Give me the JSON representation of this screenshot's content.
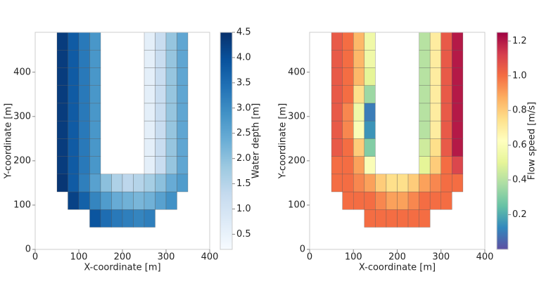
{
  "chart_data": [
    {
      "type": "heatmap",
      "x_label": "X-coordinate [m]",
      "y_label": "Y-coordinate [m]",
      "colorbar_label": "Water depth [m]",
      "xbins": [
        50,
        75,
        100,
        125,
        150,
        175,
        200,
        225,
        250,
        275,
        300,
        325,
        350
      ],
      "ybins": [
        50,
        90,
        130,
        170,
        210,
        250,
        290,
        330,
        370,
        410,
        450,
        490
      ],
      "values": [
        [
          null,
          null,
          null,
          3.9,
          3.5,
          3.3,
          3.2,
          3.1,
          3.2,
          null,
          null,
          null
        ],
        [
          null,
          4.2,
          3.7,
          3.1,
          2.7,
          2.4,
          2.3,
          2.2,
          2.3,
          2.6,
          2.9,
          null
        ],
        [
          4.4,
          3.8,
          3.2,
          2.6,
          2.0,
          1.6,
          1.4,
          1.5,
          1.7,
          2.0,
          2.4,
          2.7
        ],
        [
          4.3,
          3.8,
          3.3,
          2.8,
          null,
          null,
          null,
          null,
          0.6,
          1.2,
          1.9,
          2.5
        ],
        [
          4.3,
          3.8,
          3.3,
          2.8,
          null,
          null,
          null,
          null,
          0.6,
          1.2,
          1.9,
          2.5
        ],
        [
          4.3,
          3.8,
          3.3,
          2.8,
          null,
          null,
          null,
          null,
          0.6,
          1.2,
          1.9,
          2.5
        ],
        [
          4.3,
          3.8,
          3.3,
          2.8,
          null,
          null,
          null,
          null,
          0.6,
          1.2,
          1.9,
          2.5
        ],
        [
          4.3,
          3.8,
          3.3,
          2.8,
          null,
          null,
          null,
          null,
          0.6,
          1.2,
          1.9,
          2.5
        ],
        [
          4.3,
          3.8,
          3.3,
          2.8,
          null,
          null,
          null,
          null,
          0.6,
          1.2,
          1.9,
          2.5
        ],
        [
          4.3,
          3.8,
          3.3,
          2.8,
          null,
          null,
          null,
          null,
          0.6,
          1.2,
          1.9,
          2.5
        ],
        [
          4.3,
          3.8,
          3.3,
          2.8,
          null,
          null,
          null,
          null,
          0.6,
          1.2,
          1.9,
          2.5
        ]
      ],
      "xlim": [
        0,
        400
      ],
      "ylim": [
        0,
        490
      ],
      "xticks": [
        0,
        100,
        200,
        300,
        400
      ],
      "yticks": [
        0,
        100,
        200,
        300,
        400
      ],
      "clim": [
        0.2,
        4.5
      ],
      "cticks": [
        0.5,
        {
          "value": 1,
          "label": "1.0"
        },
        1.5,
        {
          "value": 2,
          "label": "2.0"
        },
        2.5,
        {
          "value": 3,
          "label": "3.0"
        },
        3.5,
        {
          "value": 4,
          "label": "4.0"
        },
        4.5
      ],
      "colorscale": [
        "#f7fbff",
        "#deebf7",
        "#c6dbef",
        "#9ecae1",
        "#6baed6",
        "#4292c6",
        "#2171b5",
        "#08519c",
        "#08306b"
      ]
    },
    {
      "type": "heatmap",
      "x_label": "X-coordinate [m]",
      "y_label": "Y-coordinate [m]",
      "colorbar_label": "Flow speed [m/s]",
      "xbins": [
        50,
        75,
        100,
        125,
        150,
        175,
        200,
        225,
        250,
        275,
        300,
        325,
        350
      ],
      "ybins": [
        50,
        90,
        130,
        170,
        210,
        250,
        290,
        330,
        370,
        410,
        450,
        490
      ],
      "values": [
        [
          null,
          null,
          null,
          1.0,
          1.0,
          1.0,
          1.0,
          1.0,
          1.0,
          null,
          null,
          null
        ],
        [
          null,
          1.0,
          1.0,
          1.0,
          0.95,
          0.9,
          0.9,
          0.95,
          1.0,
          1.0,
          1.0,
          null
        ],
        [
          1.0,
          1.0,
          0.95,
          0.9,
          0.8,
          0.75,
          0.75,
          0.8,
          0.9,
          0.95,
          1.0,
          1.0
        ],
        [
          1.0,
          1.0,
          0.9,
          0.6,
          null,
          null,
          null,
          null,
          0.5,
          0.8,
          1.0,
          1.1
        ],
        [
          1.05,
          1.0,
          0.8,
          0.3,
          null,
          null,
          null,
          null,
          0.45,
          0.75,
          1.05,
          1.2
        ],
        [
          1.05,
          0.95,
          0.6,
          0.15,
          null,
          null,
          null,
          null,
          0.4,
          0.7,
          1.05,
          1.2
        ],
        [
          1.05,
          0.95,
          0.55,
          0.1,
          null,
          null,
          null,
          null,
          0.4,
          0.7,
          1.05,
          1.2
        ],
        [
          1.05,
          1.0,
          0.75,
          0.35,
          null,
          null,
          null,
          null,
          0.4,
          0.7,
          1.05,
          1.2
        ],
        [
          1.05,
          1.0,
          0.85,
          0.5,
          null,
          null,
          null,
          null,
          0.4,
          0.7,
          1.05,
          1.2
        ],
        [
          1.05,
          1.0,
          0.85,
          0.55,
          null,
          null,
          null,
          null,
          0.4,
          0.7,
          1.05,
          1.2
        ],
        [
          1.05,
          1.0,
          0.85,
          0.55,
          null,
          null,
          null,
          null,
          0.4,
          0.7,
          1.05,
          1.2
        ]
      ],
      "xlim": [
        0,
        400
      ],
      "ylim": [
        0,
        490
      ],
      "xticks": [
        0,
        100,
        200,
        300,
        400
      ],
      "yticks": [
        0,
        100,
        200,
        300,
        400
      ],
      "clim": [
        0.0,
        1.25
      ],
      "cticks": [
        0.2,
        0.4,
        0.6,
        0.8,
        {
          "value": 1,
          "label": "1.0"
        },
        1.2
      ],
      "colorscale": [
        "#5e4fa2",
        "#3288bd",
        "#66c2a5",
        "#abdda4",
        "#e6f598",
        "#ffffbf",
        "#fee08b",
        "#fdae61",
        "#f46d43",
        "#d53e4f",
        "#9e0142"
      ]
    }
  ]
}
